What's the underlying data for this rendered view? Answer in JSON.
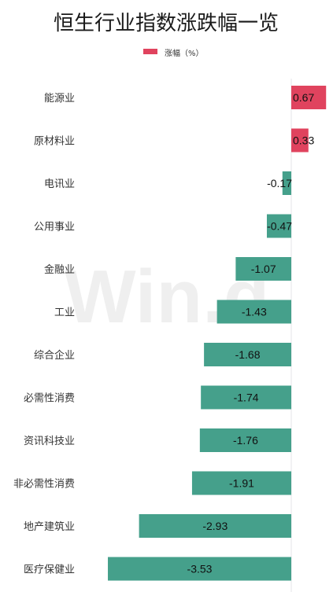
{
  "chart_data": {
    "type": "bar",
    "orientation": "horizontal",
    "title": "恒生行业指数涨跌幅一览",
    "legend": {
      "label": "涨幅（%）",
      "placement": "top-center"
    },
    "categories": [
      "能源业",
      "原材料业",
      "电讯业",
      "公用事业",
      "金融业",
      "工业",
      "综合企业",
      "必需性消费",
      "资讯科技业",
      "非必需性消费",
      "地产建筑业",
      "医疗保健业"
    ],
    "values": [
      0.67,
      0.33,
      -0.17,
      -0.47,
      -1.07,
      -1.43,
      -1.68,
      -1.74,
      -1.76,
      -1.91,
      -2.93,
      -3.53
    ],
    "value_labels": [
      "0.67",
      "0.33",
      "-0.17",
      "-0.47",
      "-1.07",
      "-1.43",
      "-1.68",
      "-1.74",
      "-1.76",
      "-1.91",
      "-2.93",
      "-3.53"
    ],
    "xlim": [
      -4,
      0.7
    ],
    "grid": false,
    "colors": {
      "positive": "#e0435e",
      "negative": "#45a08b",
      "zero_line": "#e6e6ea"
    }
  },
  "watermark": {
    "text": "Win.d"
  }
}
